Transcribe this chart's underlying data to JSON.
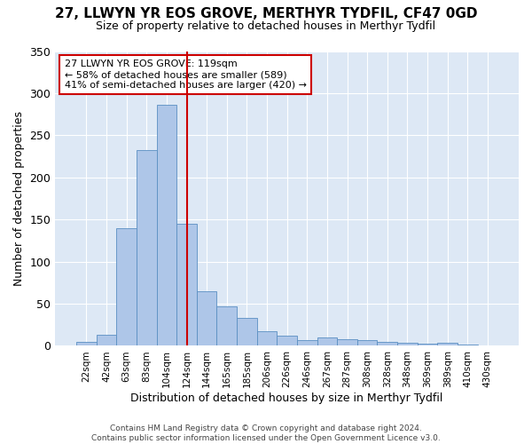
{
  "title1": "27, LLWYN YR EOS GROVE, MERTHYR TYDFIL, CF47 0GD",
  "title2": "Size of property relative to detached houses in Merthyr Tydfil",
  "xlabel": "Distribution of detached houses by size in Merthyr Tydfil",
  "ylabel": "Number of detached properties",
  "annotation_line1": "27 LLWYN YR EOS GROVE: 119sqm",
  "annotation_line2": "← 58% of detached houses are smaller (589)",
  "annotation_line3": "41% of semi-detached houses are larger (420) →",
  "footer1": "Contains HM Land Registry data © Crown copyright and database right 2024.",
  "footer2": "Contains public sector information licensed under the Open Government Licence v3.0.",
  "bar_color": "#aec6e8",
  "bar_edge_color": "#5a8fc2",
  "vline_color": "#cc0000",
  "vline_x": 5.0,
  "categories": [
    "22sqm",
    "42sqm",
    "63sqm",
    "83sqm",
    "104sqm",
    "124sqm",
    "144sqm",
    "165sqm",
    "185sqm",
    "206sqm",
    "226sqm",
    "246sqm",
    "267sqm",
    "287sqm",
    "308sqm",
    "328sqm",
    "348sqm",
    "369sqm",
    "389sqm",
    "410sqm",
    "430sqm"
  ],
  "values": [
    5,
    13,
    140,
    232,
    286,
    145,
    65,
    47,
    33,
    17,
    12,
    7,
    10,
    8,
    7,
    5,
    4,
    3,
    4,
    2,
    1
  ],
  "ylim": [
    0,
    350
  ],
  "yticks": [
    0,
    50,
    100,
    150,
    200,
    250,
    300,
    350
  ],
  "fig_background_color": "#ffffff",
  "plot_background_color": "#dde8f5",
  "grid_color": "#ffffff",
  "annotation_box_color": "#ffffff",
  "annotation_box_edge": "#cc0000",
  "title1_fontsize": 11,
  "title2_fontsize": 9
}
